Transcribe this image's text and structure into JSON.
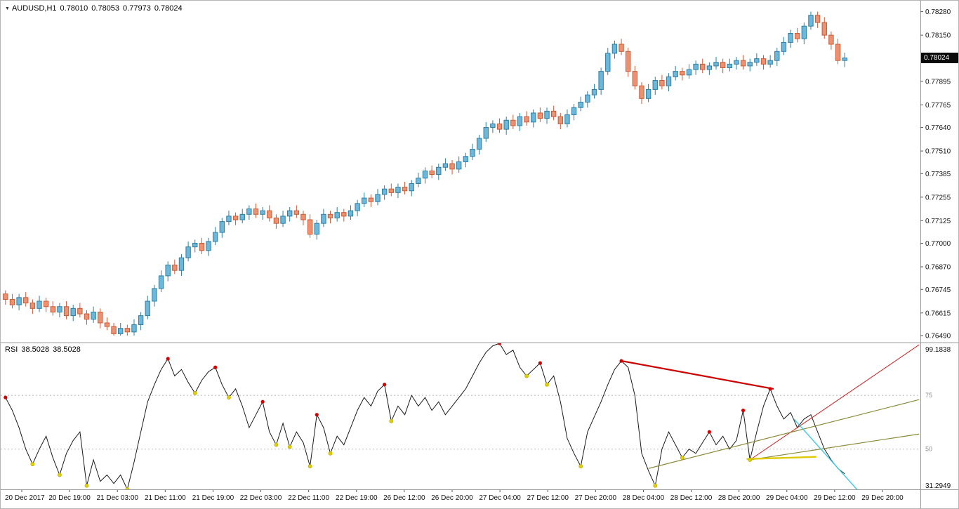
{
  "chart": {
    "title": {
      "dropdown_icon": "▼",
      "symbol_period": "AUDUSD,H1",
      "open": "0.78010",
      "high": "0.78053",
      "low": "0.77973",
      "close": "0.78024"
    },
    "price_badge": "0.78024"
  },
  "rsi_panel": {
    "name": "RSI",
    "value": "38.5028",
    "signal": "38.5028",
    "max": "99.1838",
    "min": "31.2949"
  },
  "chart_data": [
    {
      "type": "candlestick",
      "title": "AUDUSD,H1",
      "symbol": "AUDUSD",
      "timeframe": "H1",
      "current_price": 0.78024,
      "y_range": [
        0.76455,
        0.78325
      ],
      "y_ticks": [
        "0.78280",
        "0.78150",
        "0.77895",
        "0.77765",
        "0.77640",
        "0.77510",
        "0.77385",
        "0.77255",
        "0.77125",
        "0.77000",
        "0.76870",
        "0.76745",
        "0.76615",
        "0.76490"
      ],
      "x_labels": [
        "20 Dec 2017",
        "20 Dec 19:00",
        "21 Dec 03:00",
        "21 Dec 11:00",
        "21 Dec 19:00",
        "22 Dec 03:00",
        "22 Dec 11:00",
        "22 Dec 19:00",
        "26 Dec 12:00",
        "26 Dec 20:00",
        "27 Dec 04:00",
        "27 Dec 12:00",
        "27 Dec 20:00",
        "28 Dec 04:00",
        "28 Dec 12:00",
        "28 Dec 20:00",
        "29 Dec 04:00",
        "29 Dec 12:00",
        "29 Dec 20:00"
      ],
      "colors": {
        "up_fill": "#6db7da",
        "up_stroke": "#2e7fa3",
        "down_fill": "#ec9171",
        "down_stroke": "#c95b36"
      },
      "candles": [
        [
          0.7672,
          0.7674,
          0.7666,
          0.7669
        ],
        [
          0.7669,
          0.7672,
          0.7664,
          0.7666
        ],
        [
          0.7666,
          0.7672,
          0.7663,
          0.767
        ],
        [
          0.767,
          0.7673,
          0.7665,
          0.7667
        ],
        [
          0.7667,
          0.7669,
          0.7661,
          0.7664
        ],
        [
          0.7664,
          0.7671,
          0.7662,
          0.7668
        ],
        [
          0.7668,
          0.767,
          0.7662,
          0.7665
        ],
        [
          0.7665,
          0.7668,
          0.766,
          0.7662
        ],
        [
          0.7662,
          0.7667,
          0.7659,
          0.7665
        ],
        [
          0.7665,
          0.7668,
          0.7658,
          0.766
        ],
        [
          0.766,
          0.7666,
          0.7657,
          0.7664
        ],
        [
          0.7664,
          0.7667,
          0.7659,
          0.7661
        ],
        [
          0.7661,
          0.7663,
          0.7655,
          0.7658
        ],
        [
          0.7658,
          0.7665,
          0.7656,
          0.7662
        ],
        [
          0.7662,
          0.7664,
          0.7653,
          0.7656
        ],
        [
          0.7656,
          0.7659,
          0.7652,
          0.7654
        ],
        [
          0.7654,
          0.7656,
          0.7649,
          0.765
        ],
        [
          0.765,
          0.7656,
          0.7649,
          0.7653
        ],
        [
          0.7653,
          0.7655,
          0.7649,
          0.7651
        ],
        [
          0.7651,
          0.7658,
          0.7649,
          0.7655
        ],
        [
          0.7655,
          0.7662,
          0.7652,
          0.766
        ],
        [
          0.766,
          0.7671,
          0.7658,
          0.7668
        ],
        [
          0.7668,
          0.7677,
          0.7665,
          0.7675
        ],
        [
          0.7675,
          0.7685,
          0.7673,
          0.7682
        ],
        [
          0.7682,
          0.769,
          0.7679,
          0.7688
        ],
        [
          0.7688,
          0.7691,
          0.7683,
          0.7685
        ],
        [
          0.7685,
          0.7694,
          0.7682,
          0.7692
        ],
        [
          0.7692,
          0.7701,
          0.769,
          0.7698
        ],
        [
          0.7698,
          0.7702,
          0.7695,
          0.77
        ],
        [
          0.77,
          0.7703,
          0.7694,
          0.7696
        ],
        [
          0.7696,
          0.7703,
          0.7693,
          0.7701
        ],
        [
          0.7701,
          0.7709,
          0.7699,
          0.7706
        ],
        [
          0.7706,
          0.7714,
          0.7703,
          0.7712
        ],
        [
          0.7712,
          0.7718,
          0.771,
          0.7715
        ],
        [
          0.7715,
          0.7717,
          0.771,
          0.7713
        ],
        [
          0.7713,
          0.7719,
          0.7711,
          0.7716
        ],
        [
          0.7716,
          0.7721,
          0.7713,
          0.7719
        ],
        [
          0.7719,
          0.7722,
          0.7714,
          0.7716
        ],
        [
          0.7716,
          0.772,
          0.7713,
          0.7718
        ],
        [
          0.7718,
          0.7721,
          0.7712,
          0.7714
        ],
        [
          0.7714,
          0.7716,
          0.7708,
          0.7711
        ],
        [
          0.7711,
          0.7718,
          0.7709,
          0.7715
        ],
        [
          0.7715,
          0.772,
          0.7712,
          0.7718
        ],
        [
          0.7718,
          0.7721,
          0.7714,
          0.7716
        ],
        [
          0.7716,
          0.7718,
          0.771,
          0.7713
        ],
        [
          0.7713,
          0.7716,
          0.7703,
          0.7705
        ],
        [
          0.7705,
          0.7713,
          0.7702,
          0.7711
        ],
        [
          0.7711,
          0.7719,
          0.7709,
          0.7716
        ],
        [
          0.7716,
          0.7718,
          0.7711,
          0.7714
        ],
        [
          0.7714,
          0.772,
          0.7712,
          0.7717
        ],
        [
          0.7717,
          0.7719,
          0.7712,
          0.7715
        ],
        [
          0.7715,
          0.7721,
          0.7713,
          0.7718
        ],
        [
          0.7718,
          0.7724,
          0.7715,
          0.7722
        ],
        [
          0.7722,
          0.7728,
          0.772,
          0.7725
        ],
        [
          0.7725,
          0.7727,
          0.772,
          0.7723
        ],
        [
          0.7723,
          0.773,
          0.7721,
          0.7727
        ],
        [
          0.7727,
          0.7732,
          0.7724,
          0.773
        ],
        [
          0.773,
          0.7733,
          0.7726,
          0.7728
        ],
        [
          0.7728,
          0.7733,
          0.7725,
          0.7731
        ],
        [
          0.7731,
          0.7734,
          0.7727,
          0.7729
        ],
        [
          0.7729,
          0.7735,
          0.7726,
          0.7733
        ],
        [
          0.7733,
          0.7739,
          0.7731,
          0.7736
        ],
        [
          0.7736,
          0.7742,
          0.7733,
          0.774
        ],
        [
          0.774,
          0.7743,
          0.7736,
          0.7738
        ],
        [
          0.7738,
          0.7744,
          0.7735,
          0.7742
        ],
        [
          0.7742,
          0.7747,
          0.774,
          0.7744
        ],
        [
          0.7744,
          0.7746,
          0.7738,
          0.7741
        ],
        [
          0.7741,
          0.7748,
          0.7739,
          0.7745
        ],
        [
          0.7745,
          0.775,
          0.7742,
          0.7748
        ],
        [
          0.7748,
          0.7755,
          0.7746,
          0.7752
        ],
        [
          0.7752,
          0.776,
          0.7749,
          0.7758
        ],
        [
          0.7758,
          0.7767,
          0.7756,
          0.7764
        ],
        [
          0.7764,
          0.7768,
          0.7761,
          0.7766
        ],
        [
          0.7766,
          0.7769,
          0.7761,
          0.7763
        ],
        [
          0.7763,
          0.777,
          0.776,
          0.7768
        ],
        [
          0.7768,
          0.7771,
          0.7763,
          0.7765
        ],
        [
          0.7765,
          0.7772,
          0.7762,
          0.777
        ],
        [
          0.777,
          0.7773,
          0.7765,
          0.7767
        ],
        [
          0.7767,
          0.7774,
          0.7764,
          0.7772
        ],
        [
          0.7772,
          0.7775,
          0.7767,
          0.7769
        ],
        [
          0.7769,
          0.7775,
          0.7766,
          0.7773
        ],
        [
          0.7773,
          0.7776,
          0.7768,
          0.777
        ],
        [
          0.777,
          0.7772,
          0.7763,
          0.7766
        ],
        [
          0.7766,
          0.7774,
          0.7764,
          0.7771
        ],
        [
          0.7771,
          0.7777,
          0.7768,
          0.7775
        ],
        [
          0.7775,
          0.7781,
          0.7773,
          0.7778
        ],
        [
          0.7778,
          0.7784,
          0.7775,
          0.7782
        ],
        [
          0.7782,
          0.7788,
          0.778,
          0.7785
        ],
        [
          0.7785,
          0.7797,
          0.7782,
          0.7795
        ],
        [
          0.7795,
          0.7808,
          0.7793,
          0.7805
        ],
        [
          0.7805,
          0.7812,
          0.7802,
          0.781
        ],
        [
          0.781,
          0.7813,
          0.7804,
          0.7806
        ],
        [
          0.7806,
          0.7808,
          0.7792,
          0.7795
        ],
        [
          0.7795,
          0.7798,
          0.7785,
          0.7787
        ],
        [
          0.7787,
          0.7789,
          0.7777,
          0.778
        ],
        [
          0.778,
          0.7788,
          0.7778,
          0.7785
        ],
        [
          0.7785,
          0.7792,
          0.7782,
          0.779
        ],
        [
          0.779,
          0.7793,
          0.7785,
          0.7787
        ],
        [
          0.7787,
          0.7794,
          0.7784,
          0.7792
        ],
        [
          0.7792,
          0.7798,
          0.779,
          0.7795
        ],
        [
          0.7795,
          0.7797,
          0.779,
          0.7793
        ],
        [
          0.7793,
          0.7799,
          0.7791,
          0.7796
        ],
        [
          0.7796,
          0.7801,
          0.7793,
          0.7799
        ],
        [
          0.7799,
          0.7802,
          0.7794,
          0.7796
        ],
        [
          0.7796,
          0.78,
          0.7793,
          0.7798
        ],
        [
          0.7798,
          0.7803,
          0.7796,
          0.78
        ],
        [
          0.78,
          0.7802,
          0.7794,
          0.7797
        ],
        [
          0.7797,
          0.7802,
          0.7795,
          0.7799
        ],
        [
          0.7799,
          0.7803,
          0.7796,
          0.7801
        ],
        [
          0.7801,
          0.7804,
          0.7796,
          0.7798
        ],
        [
          0.7798,
          0.7802,
          0.7795,
          0.78
        ],
        [
          0.78,
          0.7805,
          0.7798,
          0.7802
        ],
        [
          0.7802,
          0.7804,
          0.7796,
          0.7799
        ],
        [
          0.7799,
          0.7804,
          0.7797,
          0.7801
        ],
        [
          0.7801,
          0.7808,
          0.7798,
          0.7806
        ],
        [
          0.7806,
          0.7814,
          0.7804,
          0.7811
        ],
        [
          0.7811,
          0.7818,
          0.7808,
          0.7816
        ],
        [
          0.7816,
          0.7819,
          0.7811,
          0.7813
        ],
        [
          0.7813,
          0.7822,
          0.781,
          0.782
        ],
        [
          0.782,
          0.7828,
          0.7818,
          0.7826
        ],
        [
          0.7826,
          0.7828,
          0.7819,
          0.7822
        ],
        [
          0.7822,
          0.7825,
          0.7813,
          0.7815
        ],
        [
          0.7815,
          0.7817,
          0.7807,
          0.781
        ],
        [
          0.781,
          0.7813,
          0.7799,
          0.7801
        ],
        [
          0.7801,
          0.78053,
          0.77973,
          0.78024
        ]
      ]
    },
    {
      "type": "line",
      "name": "RSI",
      "current_value": 38.5028,
      "y_range": [
        31.2949,
        99.1838
      ],
      "max_label": "99.1838",
      "min_label": "31.2949",
      "line_color": "#1a1a1a",
      "levels": [
        {
          "value": 75,
          "label": "75"
        },
        {
          "value": 50,
          "label": "50"
        }
      ],
      "values": [
        74,
        68,
        60,
        50,
        43,
        50,
        56,
        46,
        38,
        48,
        54,
        58,
        33,
        45,
        35,
        38,
        34,
        38,
        31.2949,
        44,
        58,
        72,
        80,
        87,
        92,
        84,
        87,
        81,
        76,
        82,
        86,
        88,
        80,
        74,
        78,
        70,
        60,
        66,
        72,
        58,
        52,
        62,
        51,
        58,
        53,
        42,
        66,
        60,
        48,
        56,
        52,
        60,
        68,
        74,
        70,
        77,
        80,
        63,
        70,
        66,
        75,
        70,
        74,
        68,
        72,
        66,
        70,
        74,
        78,
        84,
        90,
        95,
        98,
        99.1838,
        94,
        96,
        88,
        84,
        87,
        90,
        80,
        84,
        72,
        55,
        48,
        42,
        58,
        65,
        72,
        80,
        87,
        91,
        88,
        75,
        48,
        40,
        33,
        50,
        58,
        52,
        46,
        50,
        48,
        53,
        58,
        52,
        56,
        50,
        54,
        68,
        45,
        58,
        70,
        78,
        70,
        64,
        67,
        60,
        64,
        66,
        58,
        50,
        45,
        41,
        38.5028
      ],
      "peak_dots": [
        0,
        24,
        31,
        38,
        46,
        56,
        73,
        79,
        91,
        104,
        109,
        113
      ],
      "trough_dots": [
        4,
        8,
        12,
        18,
        28,
        33,
        40,
        42,
        45,
        48,
        57,
        77,
        80,
        85,
        96,
        100,
        110
      ],
      "dot_colors": {
        "peak": "#d40000",
        "trough": "#e0ce00"
      },
      "trendlines": [
        {
          "color": "#cc0000",
          "width": 2.2,
          "from": [
            91,
            91
          ],
          "to": [
            113.5,
            78
          ]
        },
        {
          "color": "#cc2222",
          "width": 1,
          "from": [
            110,
            45
          ],
          "to": [
            135,
            98.5
          ]
        },
        {
          "color": "#8a8a3a",
          "width": 1.2,
          "from": [
            95,
            41
          ],
          "to": [
            135,
            73
          ]
        },
        {
          "color": "#8a8a3a",
          "width": 1.2,
          "from": [
            110,
            45
          ],
          "to": [
            135,
            57
          ]
        },
        {
          "color": "#ddca00",
          "width": 2.4,
          "from": [
            109.5,
            45.4
          ],
          "to": [
            119.8,
            46.4
          ]
        },
        {
          "color": "#3ec9e6",
          "width": 1.4,
          "from": [
            116.5,
            64
          ],
          "to": [
            129,
            20
          ]
        }
      ]
    }
  ]
}
